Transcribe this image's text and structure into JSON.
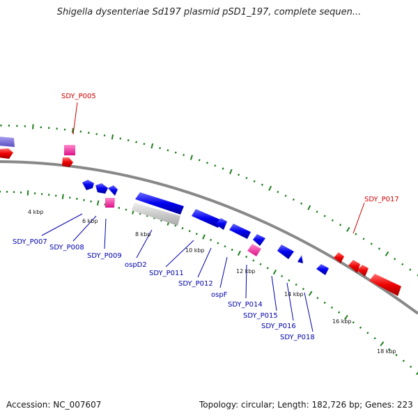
{
  "title": "Shigella dysenteriae Sd197 plasmid pSD1_197, complete sequen...",
  "footer": {
    "accession": "Accession: NC_007607",
    "summary": "Topology: circular; Length: 182,726 bp; Genes: 223"
  },
  "colors": {
    "backbone": "#8c8c8c",
    "tick_marks": "#1e7d1e",
    "forward_feature": "#ff0000",
    "reverse_feature": "#0000ff",
    "rna_feature": "#ff33aa",
    "other_feature": "#7766dd",
    "pseudo_feature": "#c8c8c8",
    "red_label": "#cc0000",
    "blue_label": "#0000aa"
  },
  "tick_labels": [
    "4 kbp",
    "6 kbp",
    "8 kbp",
    "10 kbp",
    "12 kbp",
    "14 kbp",
    "16 kbp",
    "18 kbp"
  ],
  "gene_labels": {
    "outer": [
      "SDY_P005",
      "SDY_P017"
    ],
    "inner": [
      "SDY_P007",
      "SDY_P008",
      "SDY_P009",
      "ospD2",
      "SDY_P011",
      "SDY_P012",
      "ospF",
      "SDY_P014",
      "SDY_P015",
      "SDY_P016",
      "SDY_P018"
    ]
  }
}
